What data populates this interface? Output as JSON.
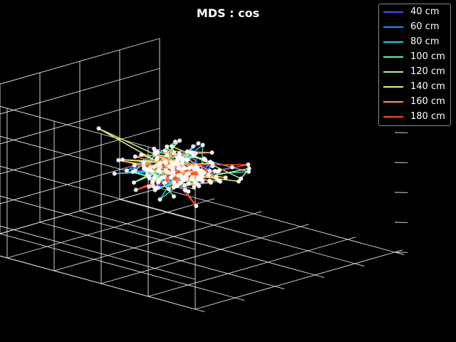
{
  "chart_data": {
    "type": "scatter",
    "subtype": "3d-line-scatter",
    "title": "MDS : cos",
    "xlabel": "",
    "ylabel": "",
    "zlabel": "",
    "grid": true,
    "background": "#000000",
    "point_color": "#ffffff",
    "legend_placement": "top-right",
    "xlim": [
      -1,
      1
    ],
    "ylim": [
      -1,
      1
    ],
    "zlim": [
      -1,
      1
    ],
    "series": [
      {
        "name": "40 cm",
        "color": "#3f51ff"
      },
      {
        "name": "60 cm",
        "color": "#1e90ff"
      },
      {
        "name": "80 cm",
        "color": "#22d3dd"
      },
      {
        "name": "100 cm",
        "color": "#52f5c0"
      },
      {
        "name": "120 cm",
        "color": "#a8f58a"
      },
      {
        "name": "140 cm",
        "color": "#dff07a"
      },
      {
        "name": "160 cm",
        "color": "#ff9a55"
      },
      {
        "name": "180 cm",
        "color": "#ff4a22"
      }
    ]
  }
}
